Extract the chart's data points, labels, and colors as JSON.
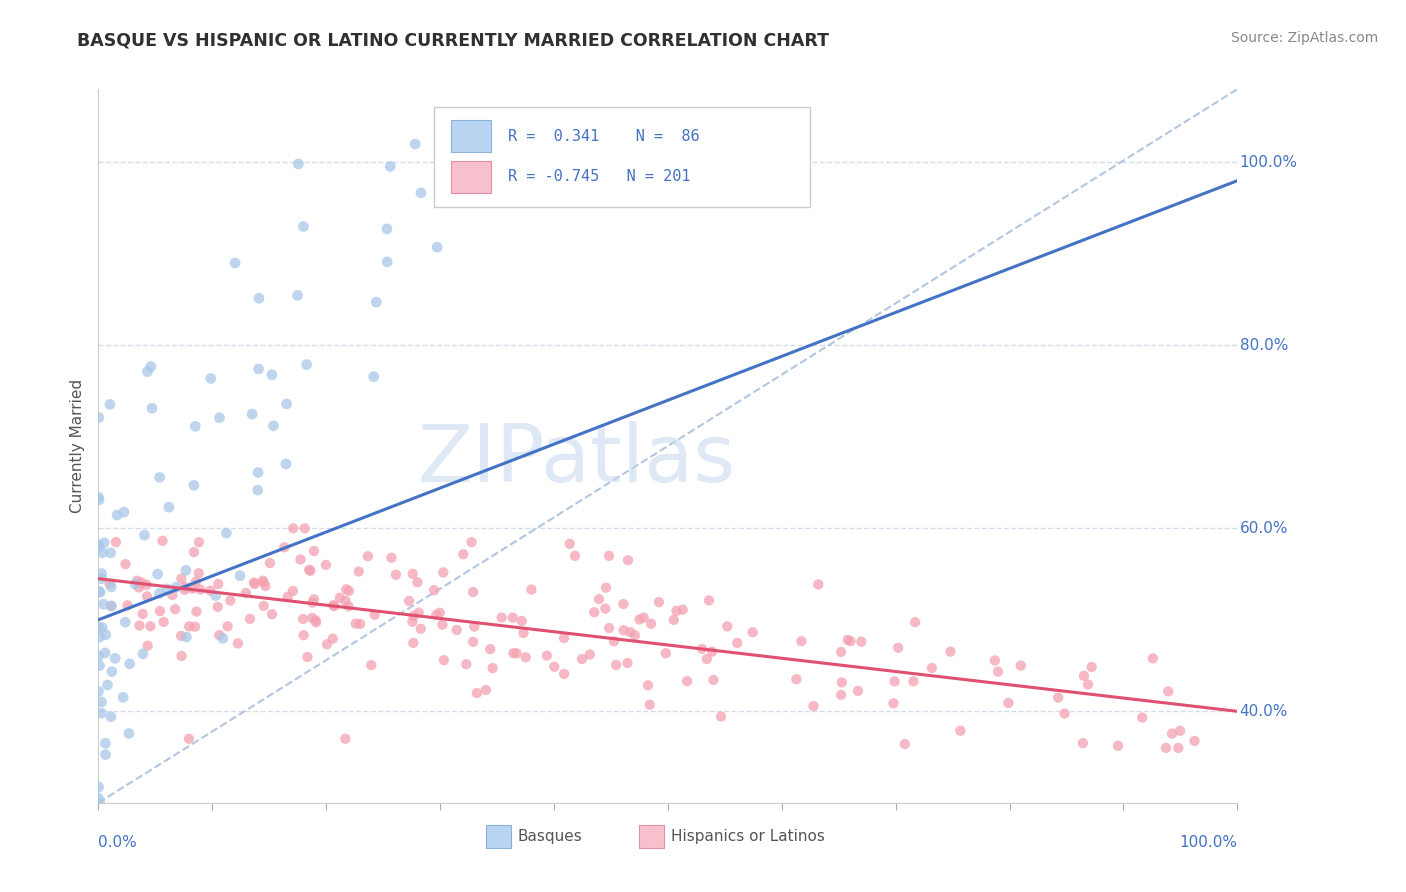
{
  "title": "BASQUE VS HISPANIC OR LATINO CURRENTLY MARRIED CORRELATION CHART",
  "source_text": "Source: ZipAtlas.com",
  "ylabel": "Currently Married",
  "blue_color": "#a8c8e8",
  "pink_color": "#f4a0b0",
  "blue_edge": "#7aafd4",
  "pink_edge": "#e07090",
  "blue_light": "#b8d4ee",
  "pink_light": "#f8c0cc",
  "line_blue": "#4472c4",
  "line_pink": "#e05070",
  "ref_line_color": "#a0b8d8",
  "watermark": "ZIPatlas",
  "background": "#ffffff",
  "grid_color": "#d0d8e8",
  "title_color": "#303030",
  "legend_text_color": "#4472c4",
  "axis_label_color": "#4472c4",
  "xlim": [
    0.0,
    1.0
  ],
  "ylim": [
    0.3,
    1.08
  ],
  "ytick_vals": [
    0.4,
    0.6,
    0.8,
    1.0
  ],
  "ytick_labels": [
    "40.0%",
    "60.0%",
    "80.0%",
    "100.0%"
  ],
  "blue_line_x": [
    0.0,
    1.0
  ],
  "blue_line_y": [
    0.5,
    0.98
  ],
  "pink_line_x": [
    0.0,
    1.0
  ],
  "pink_line_y": [
    0.545,
    0.4
  ],
  "ref_line_x": [
    0.0,
    1.0
  ],
  "ref_line_y": [
    0.3,
    1.08
  ]
}
